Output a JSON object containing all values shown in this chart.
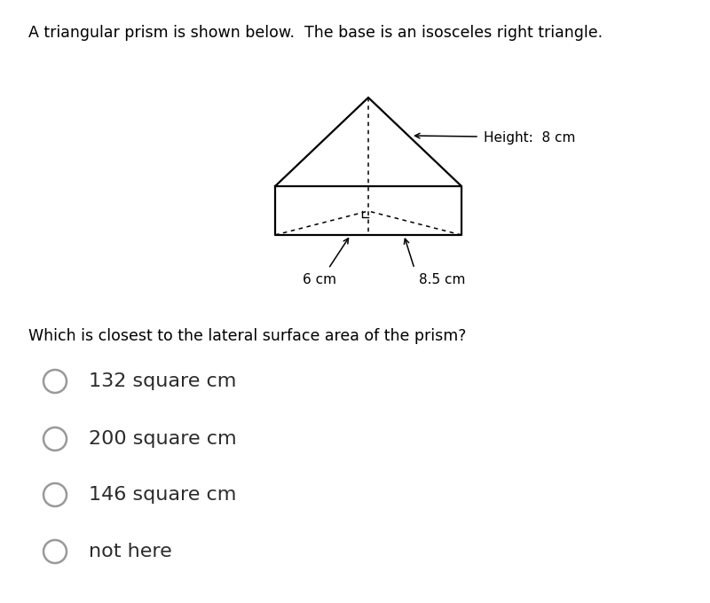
{
  "title_text": "A triangular prism is shown below.  The base is an isosceles right triangle.",
  "question_text": "Which is closest to the lateral surface area of the prism?",
  "options": [
    "132 square cm",
    "200 square cm",
    "146 square cm",
    "not here"
  ],
  "height_label": "Height:  8 cm",
  "label_6cm": "6 cm",
  "label_85cm": "8.5 cm",
  "bg_color": "#ffffff",
  "line_color": "#000000",
  "option_circle_color": "#999999",
  "title_fontsize": 12.5,
  "question_fontsize": 12.5,
  "option_fontsize": 16,
  "text_color": "#2b2b2b"
}
